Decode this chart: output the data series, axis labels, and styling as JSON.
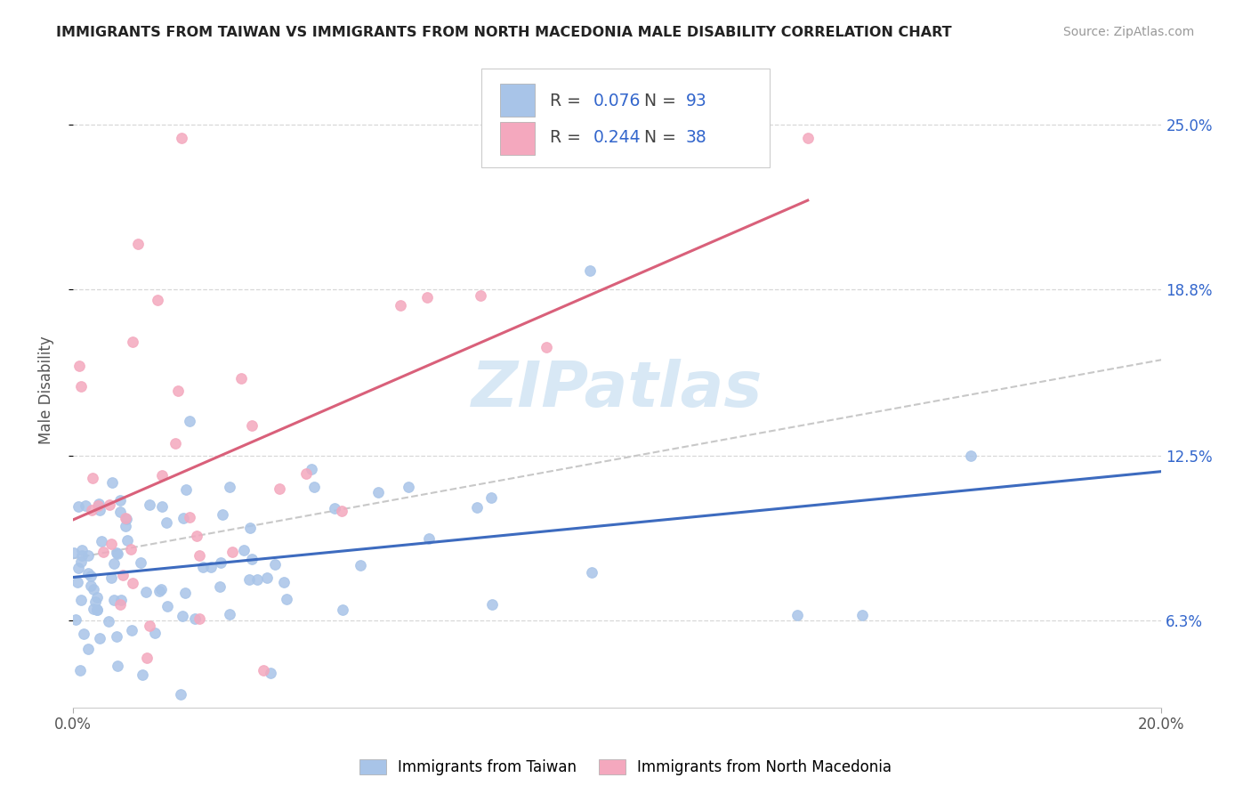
{
  "title": "IMMIGRANTS FROM TAIWAN VS IMMIGRANTS FROM NORTH MACEDONIA MALE DISABILITY CORRELATION CHART",
  "source": "Source: ZipAtlas.com",
  "ylabel": "Male Disability",
  "xlim": [
    0.0,
    0.2
  ],
  "ylim": [
    0.03,
    0.27
  ],
  "xtick_labels": [
    "0.0%",
    "20.0%"
  ],
  "ytick_labels": [
    "6.3%",
    "12.5%",
    "18.8%",
    "25.0%"
  ],
  "ytick_values": [
    0.063,
    0.125,
    0.188,
    0.25
  ],
  "taiwan_R": 0.076,
  "taiwan_N": 93,
  "macedonia_R": 0.244,
  "macedonia_N": 38,
  "taiwan_color": "#a8c4e8",
  "macedonia_color": "#f4a8be",
  "taiwan_line_color": "#3d6bbf",
  "macedonia_line_color": "#d9607a",
  "trend_line_color": "#c8c8c8",
  "watermark_color": "#d8e8f5",
  "legend_blue": "#3366cc",
  "legend_black": "#444444",
  "bottom_legend_taiwan": "Immigrants from Taiwan",
  "bottom_legend_mac": "Immigrants from North Macedonia"
}
